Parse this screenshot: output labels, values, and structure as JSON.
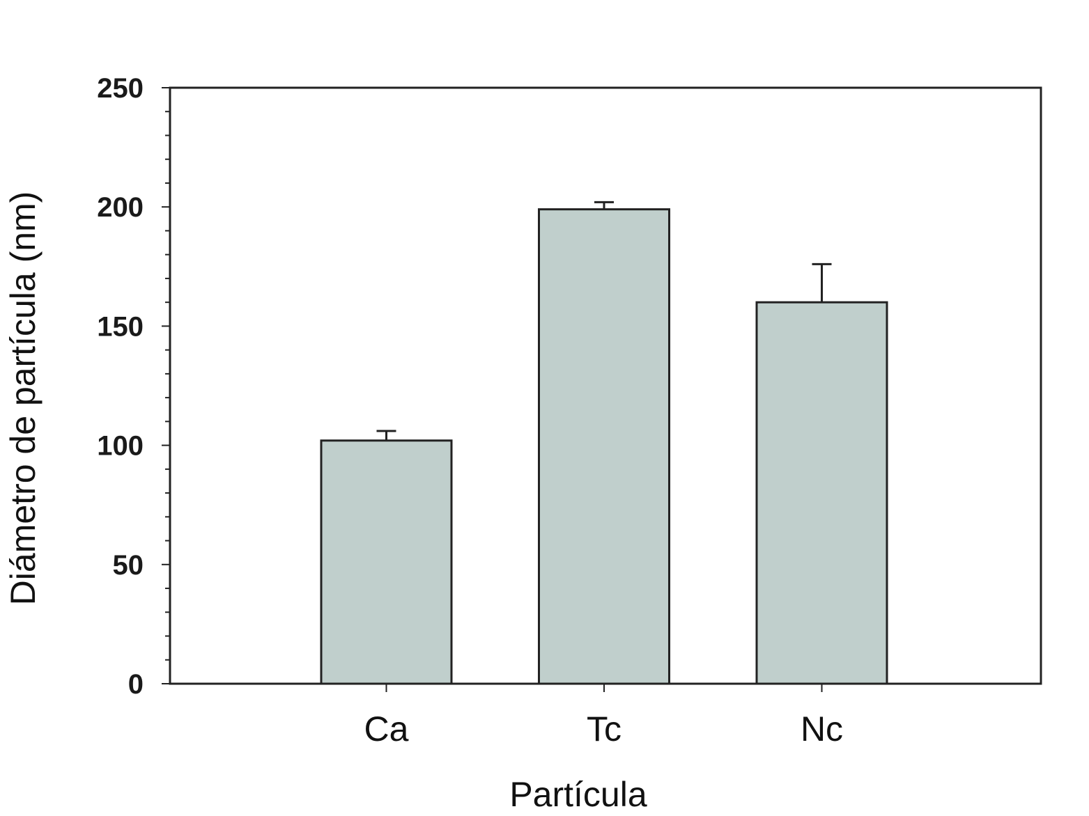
{
  "chart_data": {
    "type": "bar",
    "categories": [
      "Ca",
      "Tc",
      "Nc"
    ],
    "values": [
      102,
      199,
      160
    ],
    "errors": [
      4,
      3,
      16
    ],
    "xlabel": "Partícula",
    "ylabel": "Diámetro de partícula (nm)",
    "ylim": [
      0,
      250
    ],
    "yticks": [
      "0",
      "50",
      "100",
      "150",
      "200",
      "250"
    ],
    "grid": false,
    "bar_color": "#c0cfcc"
  }
}
